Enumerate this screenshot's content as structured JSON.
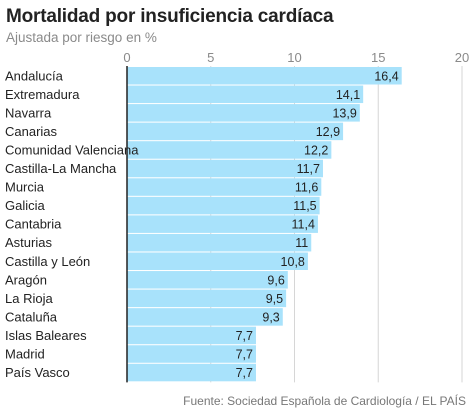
{
  "header": {
    "title": "Mortalidad por insuficiencia cardíaca",
    "subtitle": "Ajustada por riesgo en %"
  },
  "footer": {
    "source": "Fuente: Sociedad Española de Cardiología / EL PAÍS"
  },
  "colors": {
    "bar": "#a8e2fb",
    "bar_border": "#ffffff",
    "grid": "#d6d6d6",
    "axis": "#222222",
    "text": "#222222",
    "tick": "#8a8a8a"
  },
  "chart_data": {
    "type": "bar",
    "orientation": "horizontal",
    "title": "Mortalidad por insuficiencia cardíaca",
    "subtitle": "Ajustada por riesgo en %",
    "xlim": [
      0,
      20
    ],
    "xticks": [
      0,
      5,
      10,
      15,
      20
    ],
    "grid": true,
    "categories": [
      "Andalucía",
      "Extremadura",
      "Navarra",
      "Canarias",
      "Comunidad Valenciana",
      "Castilla-La Mancha",
      "Murcia",
      "Galicia",
      "Cantabria",
      "Asturias",
      "Castilla y León",
      "Aragón",
      "La Rioja",
      "Cataluña",
      "Islas Baleares",
      "Madrid",
      "País Vasco"
    ],
    "values": [
      16.4,
      14.1,
      13.9,
      12.9,
      12.2,
      11.7,
      11.6,
      11.5,
      11.4,
      11,
      10.8,
      9.6,
      9.5,
      9.3,
      7.7,
      7.7,
      7.7
    ],
    "value_labels": [
      "16,4",
      "14,1",
      "13,9",
      "12,9",
      "12,2",
      "11,7",
      "11,6",
      "11,5",
      "11,4",
      "11",
      "10,8",
      "9,6",
      "9,5",
      "9,3",
      "7,7",
      "7,7",
      "7,7"
    ]
  }
}
